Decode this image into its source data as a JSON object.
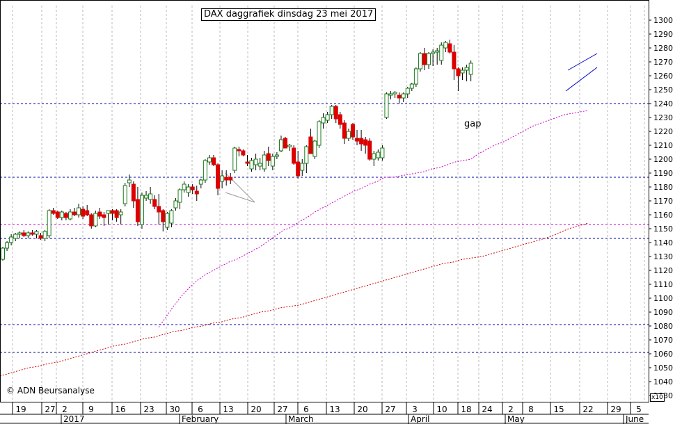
{
  "chart_data": {
    "type": "candlestick",
    "title": "DAX daggrafiek dinsdag 23 mei 2017",
    "y_axis": {
      "min": 1025,
      "max": 1305,
      "ticks": [
        1030,
        1040,
        1050,
        1060,
        1070,
        1080,
        1090,
        1100,
        1110,
        1120,
        1130,
        1140,
        1150,
        1160,
        1170,
        1180,
        1190,
        1200,
        1210,
        1220,
        1230,
        1240,
        1250,
        1260,
        1270,
        1280,
        1290,
        1300
      ],
      "multiplier_label": "x10",
      "grid": true
    },
    "x_axis": {
      "day_labels": [
        "19",
        "27",
        "2",
        "9",
        "16",
        "23",
        "30",
        "6",
        "13",
        "20",
        "27",
        "6",
        "13",
        "20",
        "27",
        "3",
        "10",
        "18",
        "24",
        "2",
        "8",
        "15",
        "22",
        "29",
        "5"
      ],
      "month_labels": [
        "2017",
        "February",
        "March",
        "April",
        "May",
        "June"
      ]
    },
    "horizontal_lines": [
      1240,
      1187,
      1153,
      1143,
      1081,
      1061
    ],
    "annotation": "gap",
    "copyright": "© ADN Beursanalyse",
    "candles": [
      [
        1128,
        1137,
        1127,
        1136
      ],
      [
        1136,
        1141,
        1134,
        1140
      ],
      [
        1140,
        1146,
        1138,
        1144
      ],
      [
        1143,
        1147,
        1141,
        1146
      ],
      [
        1146,
        1148,
        1143,
        1147
      ],
      [
        1147,
        1149,
        1144,
        1145
      ],
      [
        1145,
        1148,
        1143,
        1147
      ],
      [
        1147,
        1149,
        1145,
        1146
      ],
      [
        1146,
        1149,
        1143,
        1148
      ],
      [
        1145,
        1147,
        1142,
        1143
      ],
      [
        1143,
        1149,
        1141,
        1148
      ],
      [
        1145,
        1164,
        1143,
        1163
      ],
      [
        1163,
        1165,
        1160,
        1161
      ],
      [
        1162,
        1163,
        1157,
        1158
      ],
      [
        1158,
        1163,
        1156,
        1162
      ],
      [
        1161,
        1162,
        1156,
        1158
      ],
      [
        1157,
        1164,
        1156,
        1162
      ],
      [
        1162,
        1165,
        1159,
        1160
      ],
      [
        1160,
        1168,
        1158,
        1165
      ],
      [
        1164,
        1166,
        1157,
        1159
      ],
      [
        1163,
        1167,
        1159,
        1160
      ],
      [
        1160,
        1161,
        1150,
        1152
      ],
      [
        1152,
        1163,
        1151,
        1161
      ],
      [
        1162,
        1165,
        1157,
        1159
      ],
      [
        1160,
        1162,
        1152,
        1158
      ],
      [
        1161,
        1163,
        1153,
        1163
      ],
      [
        1163,
        1164,
        1156,
        1161
      ],
      [
        1163,
        1164,
        1155,
        1158
      ],
      [
        1160,
        1164,
        1153,
        1162
      ],
      [
        1168,
        1183,
        1166,
        1181
      ],
      [
        1183,
        1189,
        1180,
        1185
      ],
      [
        1182,
        1184,
        1165,
        1170
      ],
      [
        1171,
        1180,
        1152,
        1155
      ],
      [
        1153,
        1176,
        1150,
        1174
      ],
      [
        1172,
        1177,
        1170,
        1174
      ],
      [
        1171,
        1180,
        1168,
        1175
      ],
      [
        1171,
        1174,
        1164,
        1166
      ],
      [
        1166,
        1175,
        1153,
        1162
      ],
      [
        1163,
        1164,
        1148,
        1155
      ],
      [
        1151,
        1162,
        1149,
        1161
      ],
      [
        1154,
        1164,
        1151,
        1163
      ],
      [
        1165,
        1172,
        1163,
        1170
      ],
      [
        1169,
        1179,
        1164,
        1178
      ],
      [
        1178,
        1184,
        1176,
        1182
      ],
      [
        1176,
        1182,
        1173,
        1180
      ],
      [
        1180,
        1182,
        1175,
        1178
      ],
      [
        1177,
        1181,
        1170,
        1175
      ],
      [
        1182,
        1186,
        1179,
        1185
      ],
      [
        1185,
        1200,
        1183,
        1199
      ],
      [
        1198,
        1203,
        1196,
        1201
      ],
      [
        1201,
        1203,
        1195,
        1196
      ],
      [
        1196,
        1197,
        1174,
        1179
      ],
      [
        1184,
        1192,
        1179,
        1188
      ],
      [
        1187,
        1192,
        1181,
        1185
      ],
      [
        1187,
        1190,
        1182,
        1185
      ],
      [
        1192,
        1209,
        1190,
        1208
      ],
      [
        1207,
        1209,
        1202,
        1206
      ],
      [
        1206,
        1207,
        1202,
        1203
      ],
      [
        1198,
        1203,
        1195,
        1197
      ],
      [
        1193,
        1201,
        1191,
        1199
      ],
      [
        1196,
        1204,
        1192,
        1200
      ],
      [
        1195,
        1201,
        1192,
        1197
      ],
      [
        1193,
        1206,
        1191,
        1203
      ],
      [
        1204,
        1209,
        1195,
        1199
      ],
      [
        1195,
        1204,
        1192,
        1202
      ],
      [
        1202,
        1205,
        1200,
        1203
      ],
      [
        1206,
        1217,
        1205,
        1214
      ],
      [
        1215,
        1216,
        1208,
        1208
      ],
      [
        1209,
        1211,
        1206,
        1210
      ],
      [
        1208,
        1210,
        1196,
        1197
      ],
      [
        1198,
        1206,
        1186,
        1188
      ],
      [
        1192,
        1200,
        1188,
        1197
      ],
      [
        1197,
        1210,
        1190,
        1209
      ],
      [
        1216,
        1222,
        1204,
        1204
      ],
      [
        1202,
        1214,
        1200,
        1213
      ],
      [
        1210,
        1228,
        1208,
        1227
      ],
      [
        1226,
        1233,
        1222,
        1230
      ],
      [
        1228,
        1234,
        1226,
        1232
      ],
      [
        1232,
        1239,
        1229,
        1238
      ],
      [
        1238,
        1239,
        1226,
        1229
      ],
      [
        1232,
        1234,
        1222,
        1225
      ],
      [
        1226,
        1228,
        1211,
        1215
      ],
      [
        1215,
        1222,
        1213,
        1220
      ],
      [
        1225,
        1226,
        1214,
        1216
      ],
      [
        1215,
        1221,
        1210,
        1213
      ],
      [
        1215,
        1221,
        1206,
        1211
      ],
      [
        1214,
        1216,
        1204,
        1210
      ],
      [
        1213,
        1215,
        1199,
        1200
      ],
      [
        1200,
        1206,
        1195,
        1204
      ],
      [
        1201,
        1207,
        1199,
        1205
      ],
      [
        1201,
        1210,
        1199,
        1208
      ],
      [
        1230,
        1248,
        1229,
        1247
      ],
      [
        1246,
        1249,
        1243,
        1247
      ],
      [
        1247,
        1249,
        1244,
        1248
      ],
      [
        1246,
        1248,
        1240,
        1244
      ],
      [
        1244,
        1248,
        1241,
        1247
      ],
      [
        1247,
        1252,
        1244,
        1251
      ],
      [
        1251,
        1255,
        1249,
        1254
      ],
      [
        1254,
        1266,
        1252,
        1265
      ],
      [
        1265,
        1277,
        1263,
        1276
      ],
      [
        1276,
        1280,
        1264,
        1268
      ],
      [
        1268,
        1277,
        1265,
        1276
      ],
      [
        1276,
        1279,
        1267,
        1277
      ],
      [
        1277,
        1280,
        1268,
        1278
      ],
      [
        1271,
        1284,
        1268,
        1282
      ],
      [
        1280,
        1285,
        1277,
        1284
      ],
      [
        1283,
        1286,
        1276,
        1277
      ],
      [
        1277,
        1282,
        1257,
        1265
      ],
      [
        1265,
        1266,
        1249,
        1260
      ],
      [
        1262,
        1266,
        1257,
        1264
      ],
      [
        1264,
        1268,
        1256,
        1266
      ],
      [
        1261,
        1271,
        1256,
        1269
      ]
    ],
    "moving_average_fast": [
      1079,
      1087,
      1095,
      1102,
      1108,
      1113,
      1117,
      1120,
      1123,
      1126,
      1128,
      1131,
      1134,
      1137,
      1141,
      1145,
      1149,
      1151,
      1155,
      1158,
      1162,
      1165,
      1168,
      1171,
      1174,
      1177,
      1179,
      1182,
      1184,
      1187,
      1187,
      1188,
      1189,
      1190,
      1191,
      1193,
      1194,
      1196,
      1198,
      1199,
      1200,
      1204,
      1207,
      1210,
      1212,
      1215,
      1218,
      1221,
      1224,
      1226,
      1228,
      1230,
      1232,
      1233,
      1234,
      1235
    ],
    "moving_average_slow": [
      1044,
      1046,
      1048,
      1050,
      1051,
      1053,
      1054,
      1056,
      1058,
      1060,
      1062,
      1064,
      1066,
      1067,
      1069,
      1071,
      1072,
      1074,
      1076,
      1077,
      1079,
      1080,
      1082,
      1083,
      1085,
      1086,
      1088,
      1090,
      1091,
      1093,
      1094,
      1095,
      1097,
      1099,
      1101,
      1103,
      1105,
      1107,
      1109,
      1111,
      1113,
      1115,
      1117,
      1119,
      1121,
      1123,
      1125,
      1126,
      1128,
      1129,
      1130,
      1132,
      1134,
      1136,
      1138,
      1140,
      1142,
      1144,
      1147,
      1150,
      1152,
      1154
    ]
  }
}
